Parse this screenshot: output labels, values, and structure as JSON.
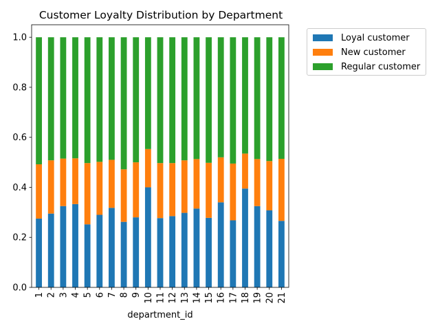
{
  "chart_data": {
    "type": "bar",
    "stacked": true,
    "title": "Customer Loyalty Distribution by Department",
    "xlabel": "department_id",
    "ylabel": "",
    "ylim": [
      0,
      1.05
    ],
    "yticks": [
      "0.0",
      "0.2",
      "0.4",
      "0.6",
      "0.8",
      "1.0"
    ],
    "categories": [
      "1",
      "2",
      "3",
      "4",
      "5",
      "6",
      "7",
      "8",
      "9",
      "10",
      "11",
      "12",
      "13",
      "14",
      "15",
      "16",
      "17",
      "18",
      "19",
      "20",
      "21"
    ],
    "series": [
      {
        "name": "Loyal customer",
        "color": "#1f77b4",
        "values": [
          0.275,
          0.295,
          0.325,
          0.333,
          0.252,
          0.29,
          0.318,
          0.262,
          0.28,
          0.4,
          0.277,
          0.285,
          0.298,
          0.315,
          0.278,
          0.34,
          0.268,
          0.395,
          0.325,
          0.308,
          0.266
        ]
      },
      {
        "name": "New customer",
        "color": "#ff7f0e",
        "values": [
          0.217,
          0.213,
          0.19,
          0.183,
          0.245,
          0.212,
          0.192,
          0.21,
          0.22,
          0.153,
          0.22,
          0.212,
          0.21,
          0.198,
          0.22,
          0.18,
          0.227,
          0.14,
          0.188,
          0.197,
          0.248
        ]
      },
      {
        "name": "Regular customer",
        "color": "#2ca02c",
        "values": [
          0.508,
          0.492,
          0.485,
          0.484,
          0.503,
          0.498,
          0.49,
          0.528,
          0.5,
          0.447,
          0.503,
          0.503,
          0.492,
          0.487,
          0.502,
          0.48,
          0.505,
          0.465,
          0.487,
          0.495,
          0.486
        ]
      }
    ],
    "legend_position": "outside-top-right",
    "grid": false
  }
}
